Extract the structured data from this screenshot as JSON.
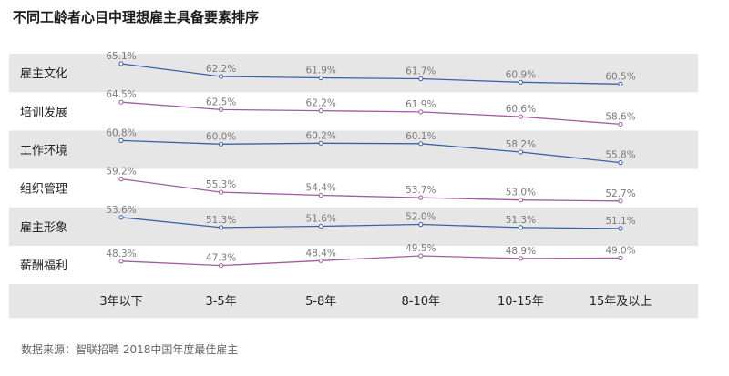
{
  "title": "不同工龄者心目中理想雇主具备要素排序",
  "source": "数据来源：智联招聘 2018中国年度最佳雇主",
  "colors": {
    "band": "#e6e6e6",
    "blue": "#3b62a8",
    "purple": "#a25aa0",
    "label": "#7a7a7a"
  },
  "chart_data": {
    "type": "line",
    "x": [
      "3年以下",
      "3-5年",
      "5-8年",
      "8-10年",
      "10-15年",
      "15年及以上"
    ],
    "value_suffix": "%",
    "series": [
      {
        "name": "雇主文化",
        "values": [
          65.1,
          62.2,
          61.9,
          61.7,
          60.9,
          60.5
        ]
      },
      {
        "name": "培训发展",
        "values": [
          64.5,
          62.5,
          62.2,
          61.9,
          60.6,
          58.6
        ]
      },
      {
        "name": "工作环境",
        "values": [
          60.8,
          60.0,
          60.2,
          60.1,
          58.2,
          55.8
        ]
      },
      {
        "name": "组织管理",
        "values": [
          59.2,
          55.3,
          54.4,
          53.7,
          53.0,
          52.7
        ]
      },
      {
        "name": "雇主形象",
        "values": [
          53.6,
          51.3,
          51.6,
          52.0,
          51.3,
          51.1
        ]
      },
      {
        "name": "薪酬福利",
        "values": [
          48.3,
          47.3,
          48.4,
          49.5,
          48.9,
          49.0
        ]
      }
    ]
  }
}
